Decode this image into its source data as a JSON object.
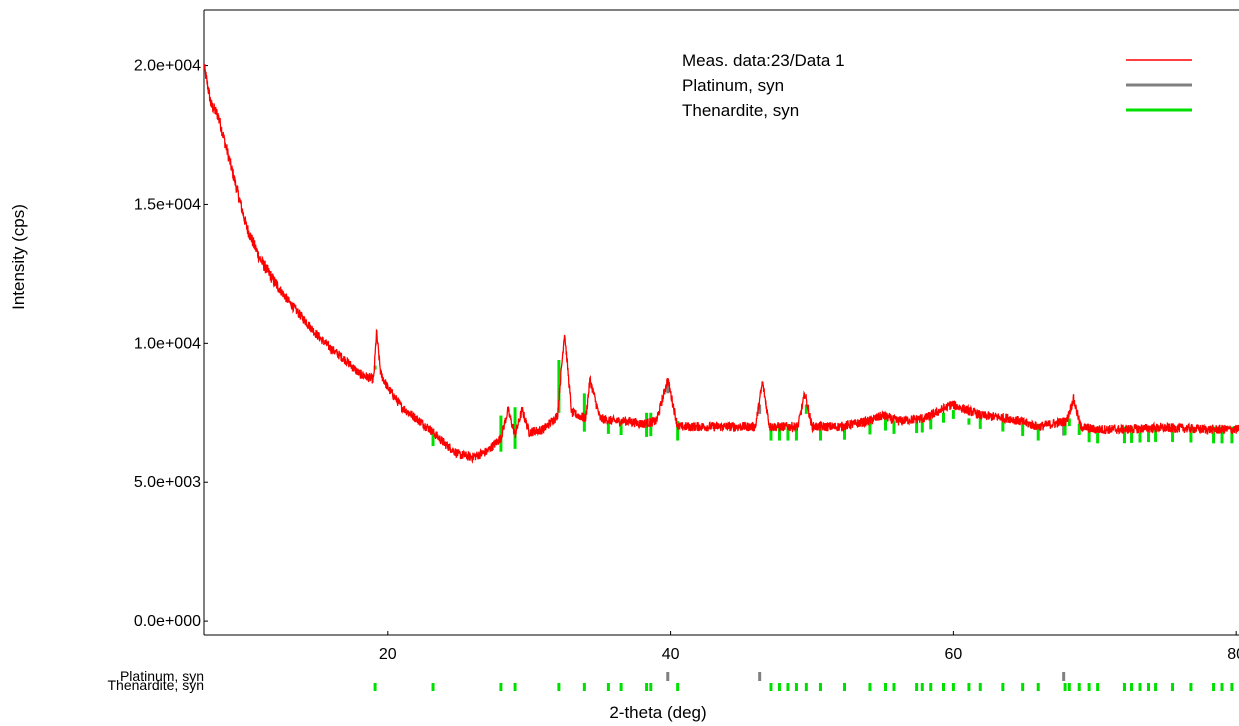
{
  "chart_data": {
    "type": "line",
    "title": "",
    "xlabel": "2-theta (deg)",
    "ylabel": "Intensity (cps)",
    "xlim": [
      7,
      80.2
    ],
    "ylim": [
      -500,
      22000
    ],
    "x_ticks": [
      20,
      40,
      60,
      80
    ],
    "x_tick_labels": [
      "20",
      "40",
      "60",
      "80"
    ],
    "y_ticks": [
      0,
      5000,
      10000,
      15000,
      20000
    ],
    "y_tick_labels": [
      "0.0e+000",
      "5.0e+003",
      "1.0e+004",
      "1.5e+004",
      "2.0e+004"
    ],
    "grid": false,
    "legend_position": "top-right",
    "series": [
      {
        "name": "Meas. data:23/Data 1",
        "color": "#ff0000",
        "x": [
          7,
          7.5,
          8,
          9,
          10,
          11,
          12,
          13,
          14,
          15,
          16,
          17,
          18,
          19,
          19.2,
          19.5,
          20,
          21,
          22,
          23,
          24,
          25,
          26,
          27,
          28,
          28.5,
          29,
          29.5,
          30,
          31,
          32,
          32.5,
          33,
          34,
          34.3,
          35,
          36,
          37,
          38,
          39,
          39.8,
          40.5,
          42,
          44,
          46,
          46.5,
          47,
          48,
          49,
          49.5,
          50,
          52,
          54,
          55,
          56,
          58,
          59.9,
          62,
          64,
          66,
          68,
          68.5,
          69,
          70,
          72,
          74,
          76,
          78,
          80
        ],
        "y": [
          20000,
          18600,
          18200,
          16200,
          14200,
          13000,
          12200,
          11500,
          10900,
          10300,
          9800,
          9400,
          8900,
          8700,
          10400,
          8900,
          8400,
          7700,
          7300,
          6900,
          6400,
          6000,
          5900,
          6100,
          6600,
          7600,
          6700,
          7600,
          6800,
          6900,
          7400,
          10400,
          7500,
          7300,
          8700,
          7300,
          7200,
          7200,
          7100,
          7200,
          8700,
          7000,
          7000,
          7000,
          7000,
          8600,
          7000,
          7000,
          7000,
          8200,
          7000,
          7000,
          7200,
          7400,
          7200,
          7300,
          7800,
          7400,
          7300,
          7000,
          7200,
          8000,
          7000,
          6900,
          6900,
          6950,
          6950,
          6900,
          6900
        ]
      },
      {
        "name": "Platinum, syn",
        "color": "#808080",
        "peaks_x": [
          39.8,
          46.3,
          67.8
        ],
        "peaks_y": [
          8700,
          7800,
          7300
        ]
      },
      {
        "name": "Thenardite, syn",
        "color": "#00e000",
        "peaks_x": [
          19.1,
          23.2,
          28.0,
          29.0,
          32.1,
          33.9,
          35.6,
          36.5,
          38.3,
          38.6,
          40.5,
          47.1,
          47.7,
          48.3,
          48.9,
          49.6,
          50.6,
          52.3,
          54.1,
          55.2,
          55.8,
          57.4,
          57.8,
          58.4,
          59.3,
          60.0,
          61.1,
          61.9,
          63.5,
          64.9,
          66.0,
          67.9,
          68.2,
          68.9,
          69.6,
          70.2,
          72.1,
          72.6,
          73.2,
          73.8,
          74.3,
          75.5,
          76.8,
          78.4,
          79.0,
          79.7
        ],
        "peaks_y": [
          9200,
          6800,
          7400,
          7700,
          9400,
          8200,
          7200,
          7200,
          7500,
          7500,
          7200,
          7100,
          7100,
          7100,
          7100,
          7800,
          7100,
          7000,
          7200,
          7500,
          7200,
          7300,
          7300,
          7300,
          7500,
          7600,
          7300,
          7300,
          7300,
          7200,
          7100,
          7300,
          7300,
          7100,
          7000,
          7000,
          7000,
          7000,
          7000,
          7000,
          7000,
          7000,
          7000,
          7000,
          7000,
          7000
        ]
      }
    ]
  }
}
